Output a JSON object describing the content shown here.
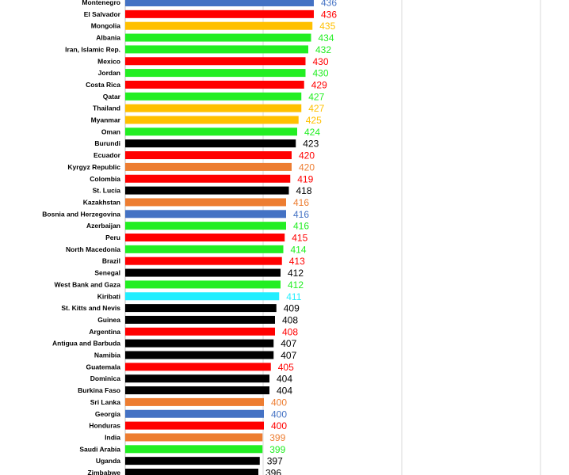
{
  "chart_data": {
    "type": "bar",
    "orientation": "horizontal",
    "grid": true,
    "colors": {
      "blue": "#4472C4",
      "red": "#FF0000",
      "yellow": "#FFC000",
      "green": "#22EE22",
      "black": "#000000",
      "orange": "#ED7D31",
      "cyan": "#22EEFF"
    },
    "bars": [
      {
        "label": "Montenegro",
        "value": 436,
        "color": "blue"
      },
      {
        "label": "El Salvador",
        "value": 436,
        "color": "red"
      },
      {
        "label": "Mongolia",
        "value": 435,
        "color": "yellow"
      },
      {
        "label": "Albania",
        "value": 434,
        "color": "green"
      },
      {
        "label": "Iran, Islamic Rep.",
        "value": 432,
        "color": "green"
      },
      {
        "label": "Mexico",
        "value": 430,
        "color": "red"
      },
      {
        "label": "Jordan",
        "value": 430,
        "color": "green"
      },
      {
        "label": "Costa Rica",
        "value": 429,
        "color": "red"
      },
      {
        "label": "Qatar",
        "value": 427,
        "color": "green"
      },
      {
        "label": "Thailand",
        "value": 427,
        "color": "yellow"
      },
      {
        "label": "Myanmar",
        "value": 425,
        "color": "yellow"
      },
      {
        "label": "Oman",
        "value": 424,
        "color": "green"
      },
      {
        "label": "Burundi",
        "value": 423,
        "color": "black"
      },
      {
        "label": "Ecuador",
        "value": 420,
        "color": "red"
      },
      {
        "label": "Kyrgyz Republic",
        "value": 420,
        "color": "orange"
      },
      {
        "label": "Colombia",
        "value": 419,
        "color": "red"
      },
      {
        "label": "St. Lucia",
        "value": 418,
        "color": "black"
      },
      {
        "label": "Kazakhstan",
        "value": 416,
        "color": "orange"
      },
      {
        "label": "Bosnia and Herzegovina",
        "value": 416,
        "color": "blue"
      },
      {
        "label": "Azerbaijan",
        "value": 416,
        "color": "green"
      },
      {
        "label": "Peru",
        "value": 415,
        "color": "red"
      },
      {
        "label": "North Macedonia",
        "value": 414,
        "color": "green"
      },
      {
        "label": "Brazil",
        "value": 413,
        "color": "red"
      },
      {
        "label": "Senegal",
        "value": 412,
        "color": "black"
      },
      {
        "label": "West Bank and Gaza",
        "value": 412,
        "color": "green"
      },
      {
        "label": "Kiribati",
        "value": 411,
        "color": "cyan"
      },
      {
        "label": "St. Kitts and Nevis",
        "value": 409,
        "color": "black"
      },
      {
        "label": "Guinea",
        "value": 408,
        "color": "black"
      },
      {
        "label": "Argentina",
        "value": 408,
        "color": "red"
      },
      {
        "label": "Antigua and Barbuda",
        "value": 407,
        "color": "black"
      },
      {
        "label": "Namibia",
        "value": 407,
        "color": "black"
      },
      {
        "label": "Guatemala",
        "value": 405,
        "color": "red"
      },
      {
        "label": "Dominica",
        "value": 404,
        "color": "black"
      },
      {
        "label": "Burkina Faso",
        "value": 404,
        "color": "black"
      },
      {
        "label": "Sri Lanka",
        "value": 400,
        "color": "orange"
      },
      {
        "label": "Georgia",
        "value": 400,
        "color": "blue"
      },
      {
        "label": "Honduras",
        "value": 400,
        "color": "red"
      },
      {
        "label": "India",
        "value": 399,
        "color": "orange"
      },
      {
        "label": "Saudi Arabia",
        "value": 399,
        "color": "green"
      },
      {
        "label": "Uganda",
        "value": 397,
        "color": "black"
      },
      {
        "label": "Zimbabwe",
        "value": 396,
        "color": "black"
      }
    ]
  }
}
